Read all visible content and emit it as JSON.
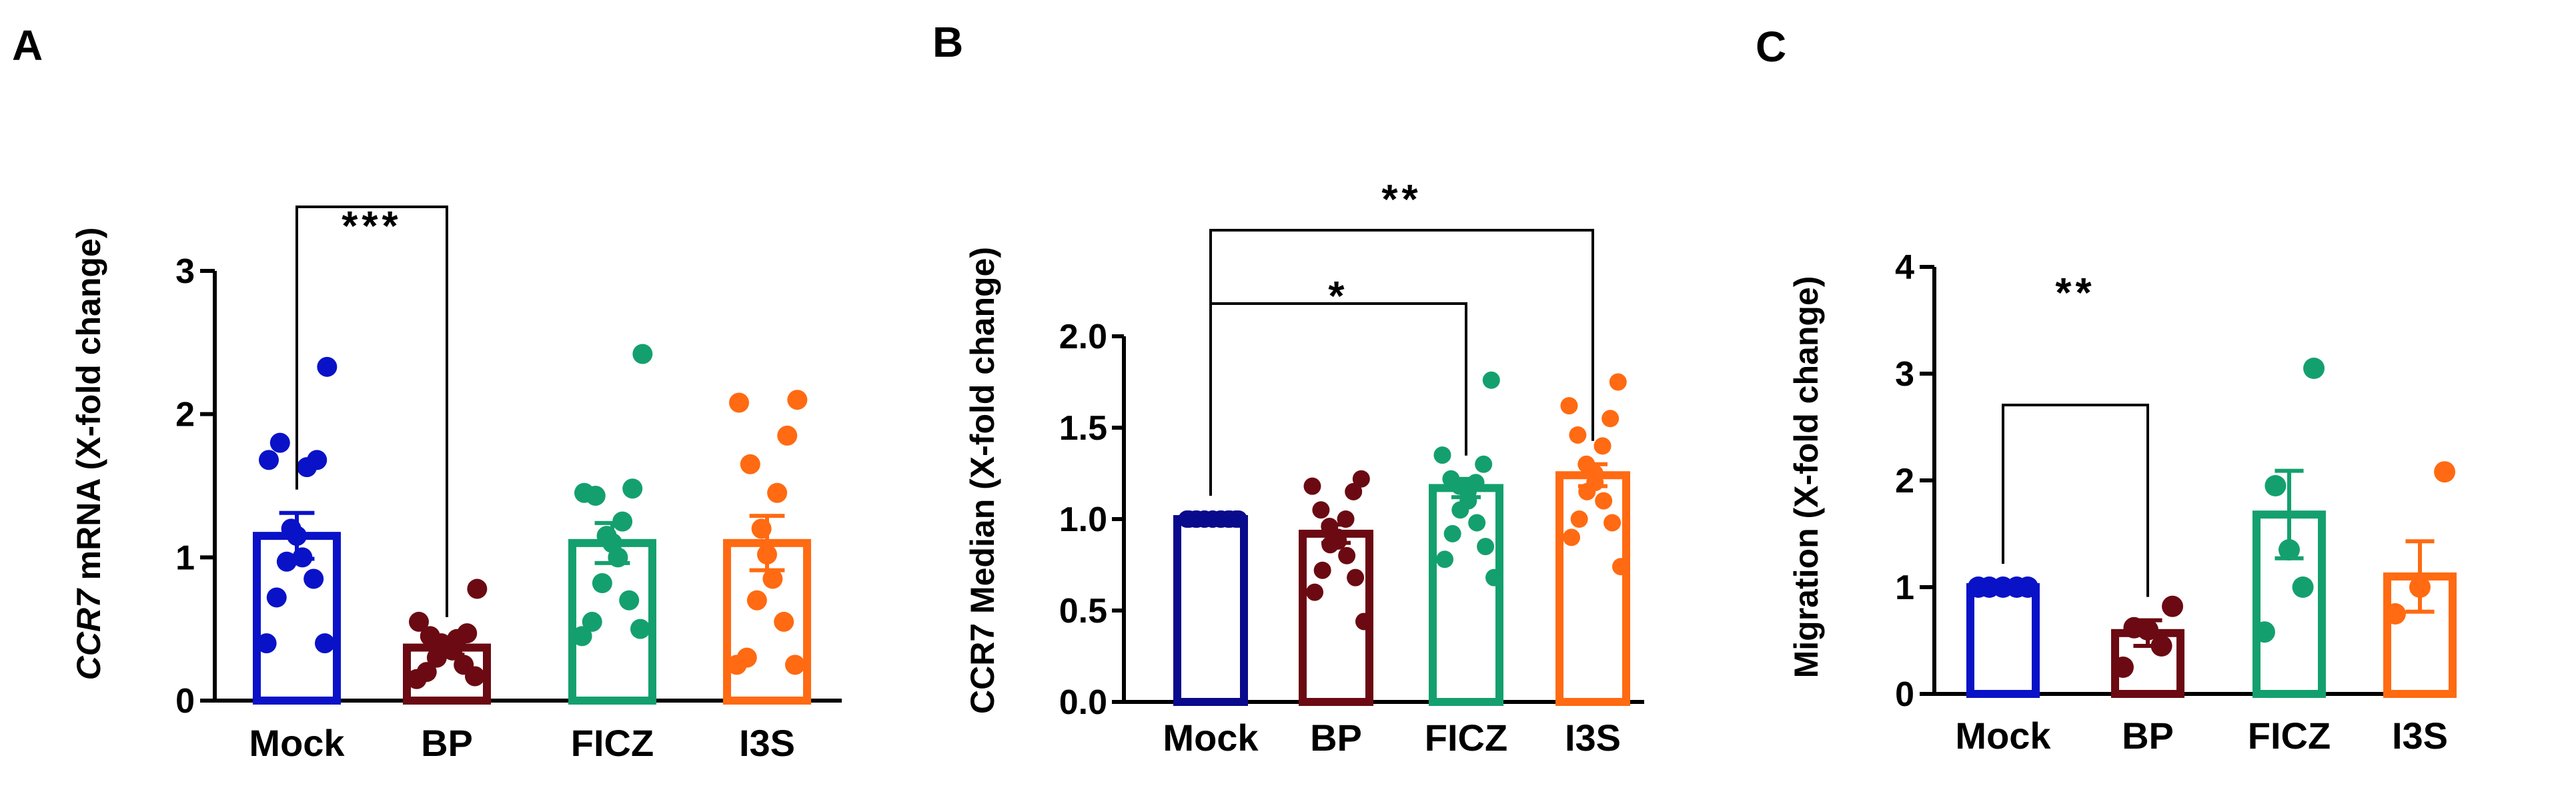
{
  "chart_data": [
    {
      "type": "bar",
      "panel": "A",
      "ylabel_italic": "CCR7",
      "ylabel_rest": " mRNA (X-fold change)",
      "ylim": [
        0,
        3
      ],
      "yticks": [
        "0",
        "1",
        "2",
        "3"
      ],
      "categories": [
        "Mock",
        "BP",
        "FICZ",
        "I3S"
      ],
      "colors": [
        "#0a12c8",
        "#6b0a12",
        "#14a06e",
        "#ff6a12"
      ],
      "means": [
        1.15,
        0.37,
        1.1,
        1.1
      ],
      "sem": [
        0.16,
        0.05,
        0.14,
        0.19
      ],
      "points": [
        [
          2.33,
          1.68,
          1.68,
          1.8,
          1.63,
          1.2,
          1.15,
          1.0,
          0.97,
          0.85,
          0.72,
          0.4,
          0.4
        ],
        [
          0.78,
          0.55,
          0.47,
          0.45,
          0.43,
          0.4,
          0.38,
          0.35,
          0.3,
          0.25,
          0.2,
          0.17,
          0.15
        ],
        [
          2.42,
          1.45,
          1.48,
          1.43,
          1.25,
          1.15,
          1.1,
          1.0,
          0.82,
          0.7,
          0.55,
          0.5,
          0.45
        ],
        [
          2.1,
          2.08,
          1.85,
          1.65,
          1.45,
          1.2,
          1.02,
          0.85,
          0.7,
          0.55,
          0.3,
          0.25,
          0.25
        ]
      ],
      "significance": [
        {
          "from": 0,
          "to": 1,
          "label": "***"
        }
      ]
    },
    {
      "type": "bar",
      "panel": "B",
      "ylabel_italic": "",
      "ylabel_rest": "CCR7 Median (X-fold change)",
      "ylim": [
        0,
        2.0
      ],
      "yticks": [
        "0.0",
        "0.5",
        "1.0",
        "1.5",
        "2.0"
      ],
      "categories": [
        "Mock",
        "BP",
        "FICZ",
        "I3S"
      ],
      "colors": [
        "#0a0a8c",
        "#6b0a12",
        "#14a06e",
        "#ff6a12"
      ],
      "means": [
        1.0,
        0.92,
        1.17,
        1.24
      ],
      "sem": [
        0.0,
        0.05,
        0.05,
        0.06
      ],
      "points": [
        [
          1.0,
          1.0,
          1.0,
          1.0,
          1.0,
          1.0,
          1.0,
          1.0,
          1.0,
          1.0,
          1.0,
          1.0,
          1.0,
          1.0
        ],
        [
          1.22,
          1.18,
          1.15,
          1.05,
          1.0,
          0.96,
          0.9,
          0.88,
          0.86,
          0.8,
          0.72,
          0.68,
          0.6,
          0.44
        ],
        [
          1.76,
          1.35,
          1.3,
          1.22,
          1.2,
          1.18,
          1.15,
          1.1,
          1.05,
          0.98,
          0.92,
          0.85,
          0.78,
          0.68
        ],
        [
          1.75,
          1.62,
          1.55,
          1.46,
          1.4,
          1.3,
          1.25,
          1.2,
          1.15,
          1.1,
          1.0,
          0.98,
          0.9,
          0.74
        ]
      ],
      "significance": [
        {
          "from": 0,
          "to": 2,
          "label": "*"
        },
        {
          "from": 0,
          "to": 3,
          "label": "**"
        }
      ]
    },
    {
      "type": "bar",
      "panel": "C",
      "ylabel_italic": "",
      "ylabel_rest": "Migration (X-fold change)",
      "ylim": [
        0,
        4
      ],
      "yticks": [
        "0",
        "1",
        "2",
        "3",
        "4"
      ],
      "categories": [
        "Mock",
        "BP",
        "FICZ",
        "I3S"
      ],
      "colors": [
        "#0a12c8",
        "#6b0a12",
        "#14a06e",
        "#ff6a12"
      ],
      "means": [
        1.0,
        0.57,
        1.68,
        1.1
      ],
      "sem": [
        0.0,
        0.12,
        0.41,
        0.33
      ],
      "points": [
        [
          1.0,
          1.0,
          1.0,
          1.0,
          1.0
        ],
        [
          0.82,
          0.62,
          0.6,
          0.45,
          0.25
        ],
        [
          3.05,
          1.95,
          1.35,
          1.0,
          0.58
        ],
        [
          2.08,
          1.0,
          0.75
        ]
      ],
      "significance": [
        {
          "from": 0,
          "to": 1,
          "label": "**"
        }
      ]
    }
  ]
}
